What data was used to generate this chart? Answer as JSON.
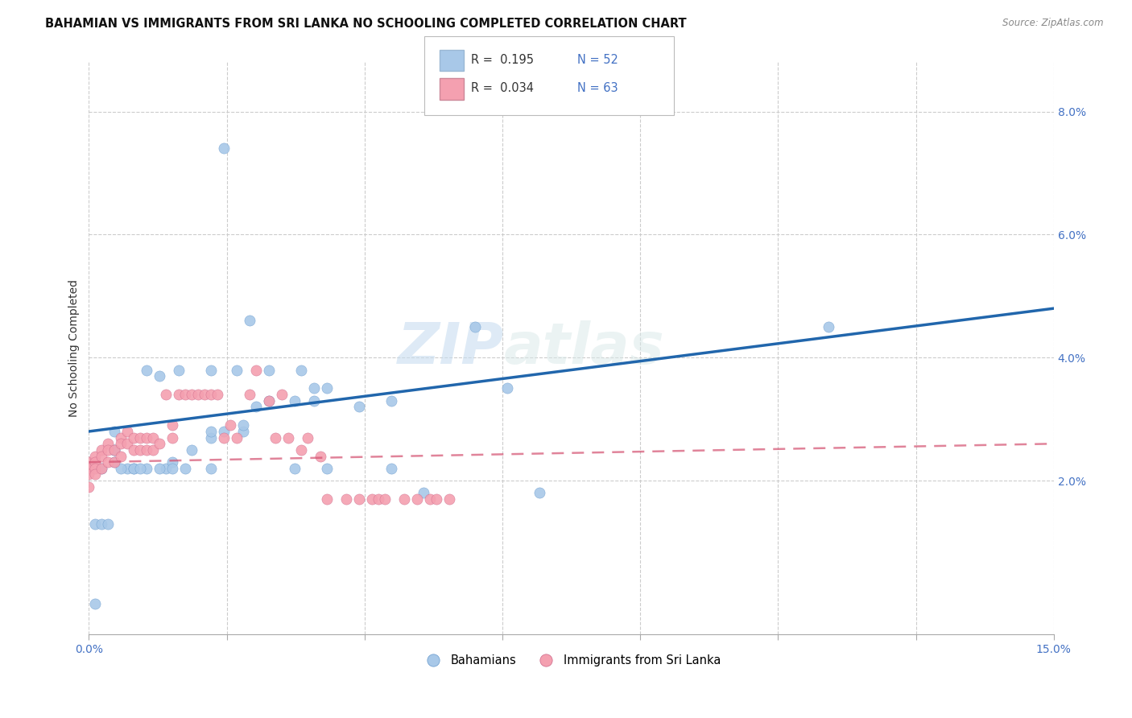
{
  "title": "BAHAMIAN VS IMMIGRANTS FROM SRI LANKA NO SCHOOLING COMPLETED CORRELATION CHART",
  "source": "Source: ZipAtlas.com",
  "ylabel": "No Schooling Completed",
  "right_yticks": [
    0.0,
    0.02,
    0.04,
    0.06,
    0.08
  ],
  "right_yticklabels": [
    "",
    "2.0%",
    "4.0%",
    "6.0%",
    "8.0%"
  ],
  "xlim": [
    0.0,
    0.15
  ],
  "ylim": [
    -0.005,
    0.088
  ],
  "legend_r1": "R =  0.195",
  "legend_n1": "N = 52",
  "legend_r2": "R =  0.034",
  "legend_n2": "N = 63",
  "blue_color": "#a8c8e8",
  "pink_color": "#f4a0b0",
  "blue_line_color": "#2166ac",
  "pink_line_color": "#d45070",
  "watermark_zip": "ZIP",
  "watermark_atlas": "atlas",
  "title_fontsize": 10.5,
  "blue_scatter_x": [
    0.021,
    0.025,
    0.011,
    0.004,
    0.004,
    0.004,
    0.006,
    0.007,
    0.009,
    0.012,
    0.013,
    0.016,
    0.019,
    0.019,
    0.021,
    0.024,
    0.024,
    0.026,
    0.028,
    0.032,
    0.035,
    0.035,
    0.037,
    0.033,
    0.028,
    0.023,
    0.019,
    0.014,
    0.009,
    0.004,
    0.002,
    0.005,
    0.007,
    0.008,
    0.011,
    0.013,
    0.015,
    0.019,
    0.032,
    0.037,
    0.042,
    0.047,
    0.047,
    0.065,
    0.06,
    0.052,
    0.07,
    0.115,
    0.001,
    0.001,
    0.002,
    0.003
  ],
  "blue_scatter_y": [
    0.074,
    0.046,
    0.037,
    0.028,
    0.025,
    0.023,
    0.022,
    0.022,
    0.022,
    0.022,
    0.023,
    0.025,
    0.027,
    0.028,
    0.028,
    0.028,
    0.029,
    0.032,
    0.033,
    0.033,
    0.033,
    0.035,
    0.035,
    0.038,
    0.038,
    0.038,
    0.038,
    0.038,
    0.038,
    0.025,
    0.022,
    0.022,
    0.022,
    0.022,
    0.022,
    0.022,
    0.022,
    0.022,
    0.022,
    0.022,
    0.032,
    0.033,
    0.022,
    0.035,
    0.045,
    0.018,
    0.018,
    0.045,
    0.0,
    0.013,
    0.013,
    0.013
  ],
  "pink_scatter_x": [
    0.0,
    0.0,
    0.0,
    0.0,
    0.001,
    0.001,
    0.001,
    0.001,
    0.002,
    0.002,
    0.002,
    0.003,
    0.003,
    0.003,
    0.004,
    0.004,
    0.005,
    0.005,
    0.005,
    0.006,
    0.006,
    0.007,
    0.007,
    0.008,
    0.008,
    0.009,
    0.009,
    0.01,
    0.01,
    0.011,
    0.012,
    0.013,
    0.013,
    0.014,
    0.015,
    0.016,
    0.017,
    0.018,
    0.019,
    0.02,
    0.021,
    0.022,
    0.023,
    0.025,
    0.026,
    0.028,
    0.029,
    0.03,
    0.031,
    0.033,
    0.034,
    0.036,
    0.037,
    0.04,
    0.042,
    0.044,
    0.045,
    0.046,
    0.049,
    0.051,
    0.053,
    0.054,
    0.056
  ],
  "pink_scatter_y": [
    0.023,
    0.022,
    0.021,
    0.019,
    0.024,
    0.023,
    0.022,
    0.021,
    0.025,
    0.024,
    0.022,
    0.026,
    0.025,
    0.023,
    0.025,
    0.023,
    0.027,
    0.026,
    0.024,
    0.028,
    0.026,
    0.027,
    0.025,
    0.027,
    0.025,
    0.027,
    0.025,
    0.027,
    0.025,
    0.026,
    0.034,
    0.029,
    0.027,
    0.034,
    0.034,
    0.034,
    0.034,
    0.034,
    0.034,
    0.034,
    0.027,
    0.029,
    0.027,
    0.034,
    0.038,
    0.033,
    0.027,
    0.034,
    0.027,
    0.025,
    0.027,
    0.024,
    0.017,
    0.017,
    0.017,
    0.017,
    0.017,
    0.017,
    0.017,
    0.017,
    0.017,
    0.017,
    0.017
  ],
  "blue_line_x0": 0.0,
  "blue_line_y0": 0.028,
  "blue_line_x1": 0.15,
  "blue_line_y1": 0.048,
  "pink_line_x0": 0.0,
  "pink_line_y0": 0.023,
  "pink_line_x1": 0.15,
  "pink_line_y1": 0.026
}
